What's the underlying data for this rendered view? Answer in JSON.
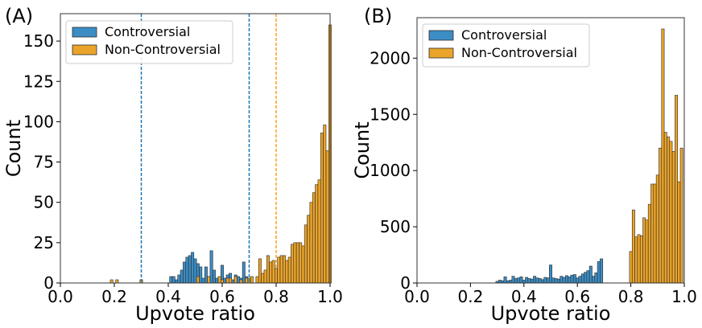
{
  "chart_data": [
    {
      "type": "bar",
      "panel_label": "(A)",
      "xlabel": "Upvote ratio",
      "ylabel": "Count",
      "xlim": [
        0.0,
        1.0
      ],
      "ylim": [
        0,
        167
      ],
      "xticks": [
        0.0,
        0.2,
        0.4,
        0.6,
        0.8,
        1.0
      ],
      "xtick_labels": [
        "0.0",
        "0.2",
        "0.4",
        "0.6",
        "0.8",
        "1.0"
      ],
      "yticks": [
        0,
        25,
        50,
        75,
        100,
        125,
        150
      ],
      "ytick_labels": [
        "0",
        "25",
        "50",
        "75",
        "100",
        "125",
        "150"
      ],
      "legend": {
        "location": "upper-left",
        "entries": [
          "Controversial",
          "Non-Controversial"
        ]
      },
      "bin_width": 0.01,
      "vlines": [
        {
          "x": 0.3,
          "color": "#1f77b4",
          "style": "dashed"
        },
        {
          "x": 0.7,
          "color": "#1f77b4",
          "style": "dashed"
        },
        {
          "x": 0.8,
          "color": "#ff9f1c",
          "style": "dashed"
        }
      ],
      "series": [
        {
          "name": "Controversial",
          "color": "#3c8dc4",
          "bins": [
            [
              0.41,
              4
            ],
            [
              0.42,
              4
            ],
            [
              0.43,
              2
            ],
            [
              0.44,
              5
            ],
            [
              0.45,
              8
            ],
            [
              0.46,
              13
            ],
            [
              0.47,
              16
            ],
            [
              0.48,
              17
            ],
            [
              0.49,
              19
            ],
            [
              0.5,
              15
            ],
            [
              0.51,
              12
            ],
            [
              0.52,
              10
            ],
            [
              0.53,
              3
            ],
            [
              0.54,
              10
            ],
            [
              0.55,
              4
            ],
            [
              0.56,
              20
            ],
            [
              0.57,
              8
            ],
            [
              0.58,
              3
            ],
            [
              0.59,
              3
            ],
            [
              0.6,
              11
            ],
            [
              0.61,
              3
            ],
            [
              0.62,
              5
            ],
            [
              0.63,
              6
            ],
            [
              0.64,
              2
            ],
            [
              0.65,
              5
            ],
            [
              0.66,
              4
            ],
            [
              0.67,
              3
            ],
            [
              0.68,
              13
            ],
            [
              0.69,
              4
            ]
          ]
        },
        {
          "name": "Non-Controversial",
          "color": "#eaa42a",
          "bins": [
            [
              0.19,
              2
            ],
            [
              0.21,
              2
            ],
            [
              0.3,
              2
            ],
            [
              0.51,
              4
            ],
            [
              0.55,
              4
            ],
            [
              0.59,
              4
            ],
            [
              0.6,
              2
            ],
            [
              0.62,
              3
            ],
            [
              0.63,
              3
            ],
            [
              0.65,
              4
            ],
            [
              0.67,
              2
            ],
            [
              0.69,
              3
            ],
            [
              0.7,
              3
            ],
            [
              0.71,
              4
            ],
            [
              0.73,
              4
            ],
            [
              0.74,
              15
            ],
            [
              0.75,
              6
            ],
            [
              0.76,
              8
            ],
            [
              0.77,
              17
            ],
            [
              0.78,
              13
            ],
            [
              0.79,
              14
            ],
            [
              0.8,
              9
            ],
            [
              0.81,
              16
            ],
            [
              0.82,
              17
            ],
            [
              0.83,
              17
            ],
            [
              0.84,
              14
            ],
            [
              0.85,
              16
            ],
            [
              0.86,
              24
            ],
            [
              0.87,
              25
            ],
            [
              0.88,
              25
            ],
            [
              0.89,
              25
            ],
            [
              0.9,
              23
            ],
            [
              0.91,
              36
            ],
            [
              0.92,
              42
            ],
            [
              0.93,
              50
            ],
            [
              0.94,
              56
            ],
            [
              0.95,
              61
            ],
            [
              0.96,
              64
            ],
            [
              0.97,
              93
            ],
            [
              0.98,
              98
            ],
            [
              0.99,
              82
            ],
            [
              1.0,
              160
            ]
          ]
        }
      ]
    },
    {
      "type": "bar",
      "panel_label": "(B)",
      "xlabel": "Upvote ratio",
      "ylabel": "Count",
      "xlim": [
        0.0,
        1.0
      ],
      "ylim": [
        0,
        2360
      ],
      "xticks": [
        0.0,
        0.2,
        0.4,
        0.6,
        0.8,
        1.0
      ],
      "xtick_labels": [
        "0.0",
        "0.2",
        "0.4",
        "0.6",
        "0.8",
        "1.0"
      ],
      "yticks": [
        0,
        500,
        1000,
        1500,
        2000
      ],
      "ytick_labels": [
        "0",
        "500",
        "1000",
        "1500",
        "2000"
      ],
      "legend": {
        "location": "upper-left",
        "entries": [
          "Controversial",
          "Non-Controversial"
        ]
      },
      "bin_width": 0.01,
      "vlines": [],
      "series": [
        {
          "name": "Controversial",
          "color": "#3c8dc4",
          "bins": [
            [
              0.3,
              15
            ],
            [
              0.31,
              25
            ],
            [
              0.32,
              20
            ],
            [
              0.33,
              55
            ],
            [
              0.34,
              20
            ],
            [
              0.35,
              25
            ],
            [
              0.36,
              60
            ],
            [
              0.37,
              40
            ],
            [
              0.38,
              45
            ],
            [
              0.39,
              55
            ],
            [
              0.4,
              25
            ],
            [
              0.41,
              50
            ],
            [
              0.42,
              40
            ],
            [
              0.43,
              35
            ],
            [
              0.44,
              60
            ],
            [
              0.45,
              45
            ],
            [
              0.46,
              40
            ],
            [
              0.47,
              30
            ],
            [
              0.48,
              50
            ],
            [
              0.49,
              45
            ],
            [
              0.5,
              160
            ],
            [
              0.51,
              45
            ],
            [
              0.52,
              40
            ],
            [
              0.53,
              35
            ],
            [
              0.54,
              60
            ],
            [
              0.55,
              50
            ],
            [
              0.56,
              65
            ],
            [
              0.57,
              55
            ],
            [
              0.58,
              70
            ],
            [
              0.59,
              75
            ],
            [
              0.6,
              45
            ],
            [
              0.61,
              60
            ],
            [
              0.62,
              80
            ],
            [
              0.63,
              95
            ],
            [
              0.64,
              110
            ],
            [
              0.65,
              150
            ],
            [
              0.66,
              60
            ],
            [
              0.67,
              90
            ],
            [
              0.68,
              190
            ],
            [
              0.69,
              215
            ]
          ]
        },
        {
          "name": "Non-Controversial",
          "color": "#eaa42a",
          "bins": [
            [
              0.8,
              280
            ],
            [
              0.81,
              650
            ],
            [
              0.82,
              410
            ],
            [
              0.83,
              430
            ],
            [
              0.84,
              420
            ],
            [
              0.85,
              580
            ],
            [
              0.86,
              560
            ],
            [
              0.87,
              700
            ],
            [
              0.88,
              880
            ],
            [
              0.89,
              880
            ],
            [
              0.9,
              960
            ],
            [
              0.91,
              1200
            ],
            [
              0.92,
              2260
            ],
            [
              0.93,
              1340
            ],
            [
              0.94,
              1300
            ],
            [
              0.95,
              1260
            ],
            [
              0.96,
              1170
            ],
            [
              0.97,
              1670
            ],
            [
              0.98,
              900
            ],
            [
              0.99,
              1200
            ]
          ]
        }
      ]
    }
  ]
}
